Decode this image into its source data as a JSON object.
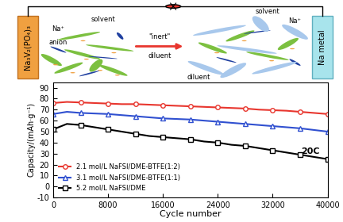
{
  "chart_data": {
    "type": "line",
    "x_label": "Cycle number",
    "y_label": "Capacity/(mAh·g⁻¹)",
    "x": [
      0,
      2000,
      4000,
      6000,
      8000,
      10000,
      12000,
      14000,
      16000,
      18000,
      20000,
      22000,
      24000,
      26000,
      28000,
      30000,
      32000,
      34000,
      36000,
      38000,
      40000
    ],
    "xlim": [
      0,
      40000
    ],
    "xticks": [
      0,
      8000,
      16000,
      24000,
      32000,
      40000
    ],
    "ylim": [
      -10,
      95
    ],
    "yticks": [
      -10,
      0,
      10,
      20,
      30,
      40,
      50,
      60,
      70,
      80,
      90
    ],
    "legend": "lower left",
    "annotations": [
      "20C"
    ],
    "series": [
      {
        "name": "2.1 mol/L NaFSI/DME-BTFE(1:2)",
        "color": "#e8362e",
        "marker": "circle",
        "values": [
          76,
          77,
          76.5,
          76,
          75.5,
          75,
          75,
          74.5,
          74,
          73.5,
          73,
          72.5,
          72,
          71.5,
          71,
          70,
          69.5,
          69,
          68,
          67,
          66
        ]
      },
      {
        "name": "3.1 mol/L NaFSI/DME-BTFE(1:1)",
        "color": "#3050d0",
        "marker": "triangle",
        "values": [
          66,
          68,
          67,
          66.5,
          66,
          65,
          64,
          63,
          62,
          61.5,
          61,
          60,
          59,
          58,
          57,
          56,
          55,
          54,
          53,
          51.5,
          50
        ]
      },
      {
        "name": "5.2 mol/L NaFSI/DME",
        "color": "#000000",
        "marker": "square",
        "values": [
          52,
          57,
          56,
          54,
          52,
          50,
          48,
          46,
          45,
          44,
          43,
          41,
          40,
          38,
          37,
          35,
          33,
          31,
          29,
          27,
          25
        ]
      }
    ]
  },
  "schematic": {
    "left_electrode": "Na₃V₂(PO₄)₃",
    "right_electrode": "Na metal",
    "left_labels": [
      "solvent",
      "Na⁺",
      "anion"
    ],
    "arrow_top": "\"inert\"",
    "arrow_bottom": "diluent",
    "right_labels": [
      "solvent",
      "Na⁺",
      "diluent"
    ]
  }
}
